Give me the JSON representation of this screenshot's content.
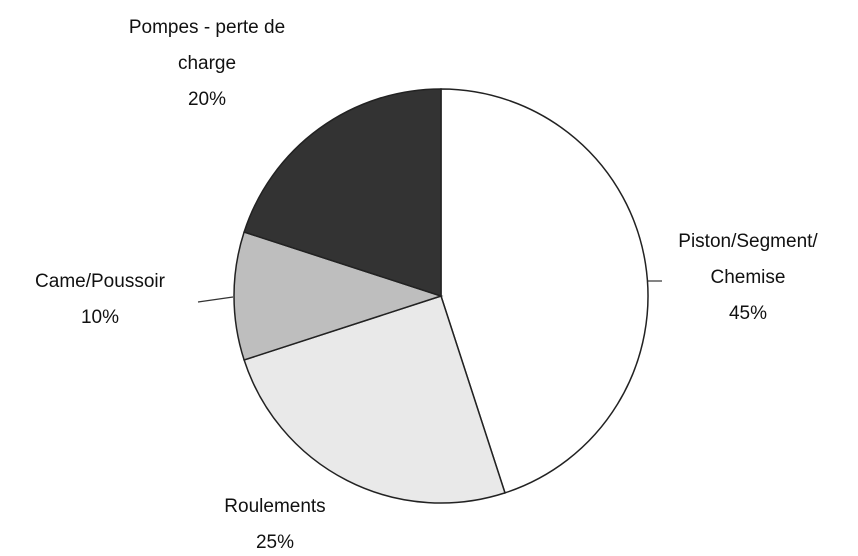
{
  "chart_data": {
    "type": "pie",
    "categories": [
      "Piston/Segment/\nChemise",
      "Roulements",
      "Came/Poussoir",
      "Pompes - perte de\ncharge"
    ],
    "values": [
      45,
      25,
      10,
      20
    ],
    "value_labels": [
      "45%",
      "25%",
      "10%",
      "20%"
    ],
    "colors": [
      "#ffffff",
      "#e9e9e9",
      "#bebebe",
      "#333333"
    ]
  }
}
